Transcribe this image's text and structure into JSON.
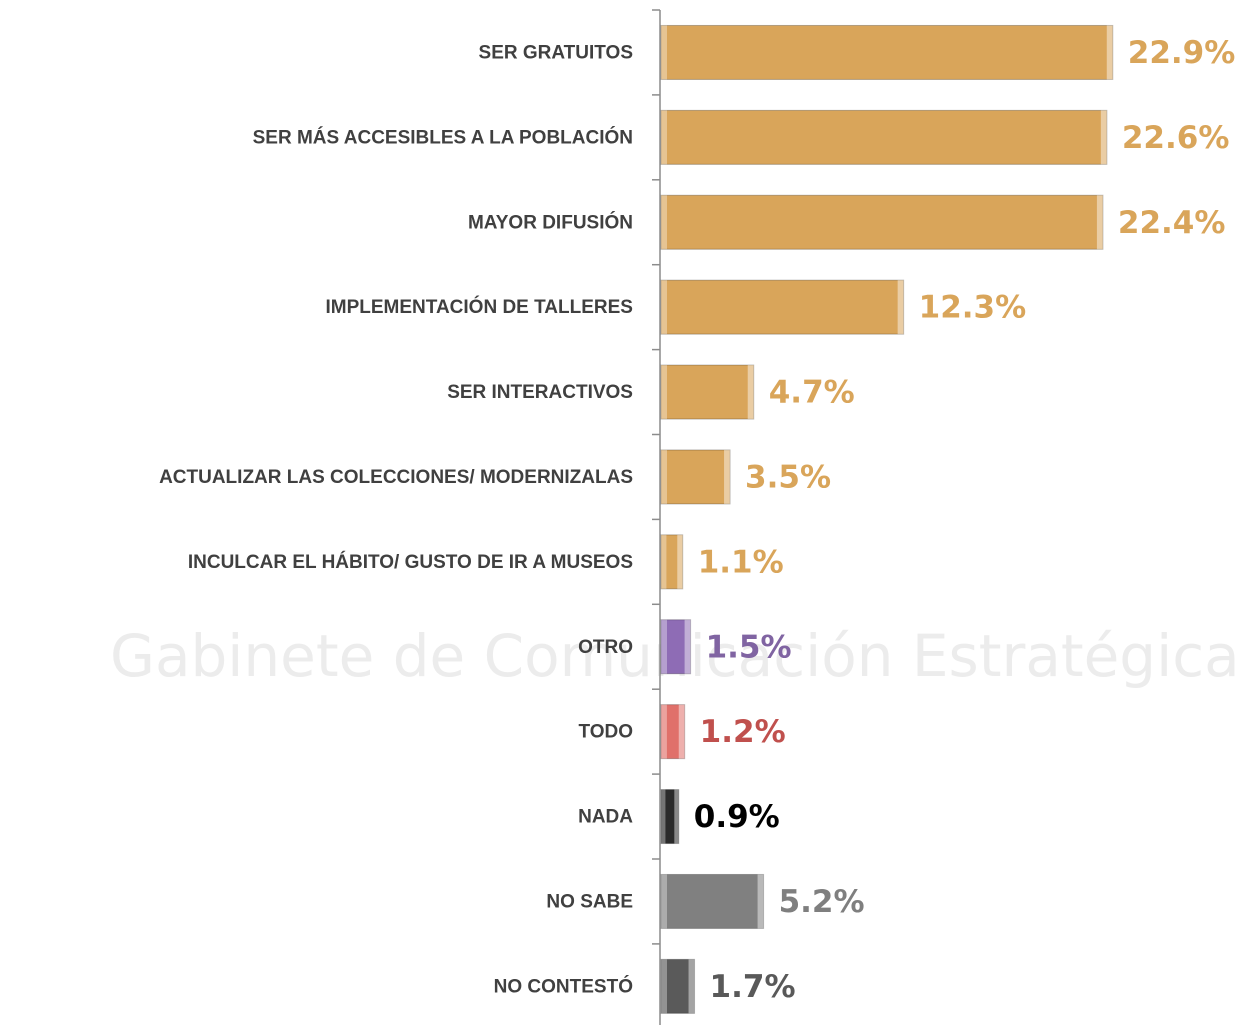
{
  "watermark": "Gabinete de Comunicación Estratégica",
  "chart_data": {
    "type": "hbar",
    "categories": [
      "SER GRATUITOS",
      "SER MÁS ACCESIBLES A LA POBLACIÓN",
      "MAYOR DIFUSIÓN",
      "IMPLEMENTACIÓN DE TALLERES",
      "SER INTERACTIVOS",
      "ACTUALIZAR LAS COLECCIONES/ MODERNIZALAS",
      "INCULCAR EL HÁBITO/ GUSTO DE IR A MUSEOS",
      "OTRO",
      "TODO",
      "NADA",
      "NO SABE",
      "NO CONTESTÓ"
    ],
    "values": [
      22.9,
      22.6,
      22.4,
      12.3,
      4.7,
      3.5,
      1.1,
      1.5,
      1.2,
      0.9,
      5.2,
      1.7
    ],
    "value_labels": [
      "22.9%",
      "22.6%",
      "22.4%",
      "12.3%",
      "4.7%",
      "3.5%",
      "1.1%",
      "1.5%",
      "1.2%",
      "0.9%",
      "5.2%",
      "1.7%"
    ],
    "colors": [
      "#d9a55a",
      "#d9a55a",
      "#d9a55a",
      "#d9a55a",
      "#d9a55a",
      "#d9a55a",
      "#d9a55a",
      "#8e6cb5",
      "#e0706a",
      "#2b2b2b",
      "#808080",
      "#5a5a5a"
    ],
    "label_colors": [
      "#d9a55a",
      "#d9a55a",
      "#d9a55a",
      "#d9a55a",
      "#d9a55a",
      "#d9a55a",
      "#d9a55a",
      "#8064a2",
      "#c0504d",
      "#000000",
      "#7f7f7f",
      "#595959"
    ],
    "xlim": [
      0,
      29.4
    ]
  }
}
